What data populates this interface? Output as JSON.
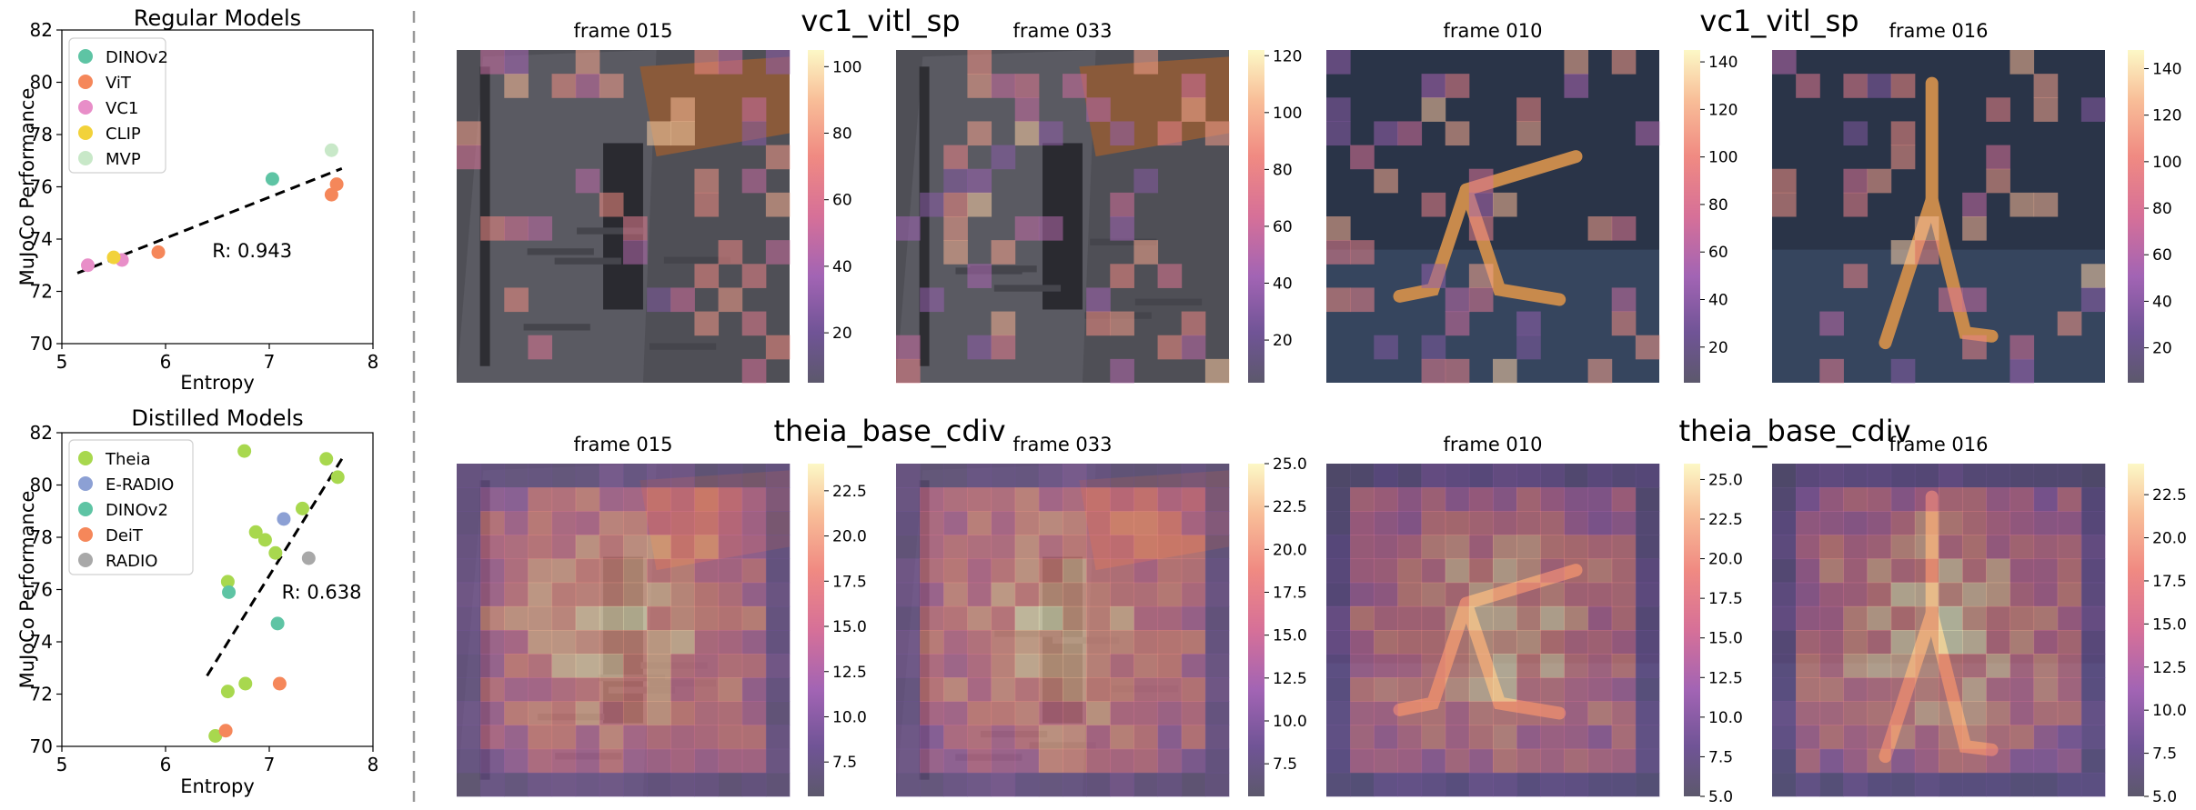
{
  "accent_colors": {
    "teal": "#5ec4a4",
    "orange": "#f5875a",
    "pink": "#e88ec8",
    "yellow": "#f2d23a",
    "mint": "#c8e8c8",
    "lime": "#a8d84e",
    "periwinkle": "#8ca0d4",
    "gray": "#a8a8a8"
  },
  "chart_data": [
    {
      "type": "scatter",
      "title": "Regular Models",
      "xlabel": "Entropy",
      "ylabel": "MuJoCo Performance",
      "xlim": [
        5,
        8
      ],
      "ylim": [
        70,
        82
      ],
      "xticks": [
        "5",
        "6",
        "7",
        "8"
      ],
      "yticks": [
        "70",
        "72",
        "74",
        "76",
        "78",
        "80",
        "82"
      ],
      "legend_position": "top-left",
      "annotation": "R: 0.943",
      "trend_line": {
        "x1": 5.15,
        "y1": 72.7,
        "x2": 7.7,
        "y2": 76.7
      },
      "series": [
        {
          "name": "DINOv2",
          "color": "#5ec4a4",
          "points": [
            [
              7.03,
              76.3
            ]
          ]
        },
        {
          "name": "ViT",
          "color": "#f5875a",
          "points": [
            [
              5.93,
              73.5
            ],
            [
              7.6,
              75.7
            ],
            [
              7.65,
              76.1
            ]
          ]
        },
        {
          "name": "VC1",
          "color": "#e88ec8",
          "points": [
            [
              5.25,
              73.0
            ],
            [
              5.58,
              73.2
            ]
          ]
        },
        {
          "name": "CLIP",
          "color": "#f2d23a",
          "points": [
            [
              5.5,
              73.3
            ]
          ]
        },
        {
          "name": "MVP",
          "color": "#c8e8c8",
          "points": [
            [
              7.6,
              77.4
            ]
          ]
        }
      ]
    },
    {
      "type": "scatter",
      "title": "Distilled Models",
      "xlabel": "Entropy",
      "ylabel": "MuJoCo Performance",
      "xlim": [
        5,
        8
      ],
      "ylim": [
        70,
        82
      ],
      "xticks": [
        "5",
        "6",
        "7",
        "8"
      ],
      "yticks": [
        "70",
        "72",
        "74",
        "76",
        "78",
        "80",
        "82"
      ],
      "legend_position": "top-left",
      "annotation": "R: 0.638",
      "trend_line": {
        "x1": 6.4,
        "y1": 72.7,
        "x2": 7.7,
        "y2": 81.0
      },
      "series": [
        {
          "name": "Theia",
          "color": "#a8d84e",
          "points": [
            [
              6.48,
              70.4
            ],
            [
              6.6,
              72.1
            ],
            [
              6.77,
              72.4
            ],
            [
              6.6,
              76.3
            ],
            [
              6.76,
              81.3
            ],
            [
              6.87,
              78.2
            ],
            [
              6.96,
              77.9
            ],
            [
              7.06,
              77.4
            ],
            [
              7.32,
              79.1
            ],
            [
              7.55,
              81.0
            ],
            [
              7.66,
              80.3
            ]
          ]
        },
        {
          "name": "E-RADIO",
          "color": "#8ca0d4",
          "points": [
            [
              7.14,
              78.7
            ]
          ]
        },
        {
          "name": "DINOv2",
          "color": "#5ec4a4",
          "points": [
            [
              6.61,
              75.9
            ],
            [
              7.08,
              74.7
            ]
          ]
        },
        {
          "name": "DeiT",
          "color": "#f5875a",
          "points": [
            [
              6.58,
              70.6
            ],
            [
              7.1,
              72.4
            ]
          ]
        },
        {
          "name": "RADIO",
          "color": "#a8a8a8",
          "points": [
            [
              7.38,
              77.2
            ]
          ]
        }
      ]
    },
    {
      "type": "heatmap",
      "group_title": "vc1_vitl_sp",
      "panels": [
        {
          "title": "frame 015",
          "scene": "door",
          "vmin": 5,
          "vmax": 105,
          "cbar_ticks": [
            "20",
            "40",
            "60",
            "80",
            "100"
          ]
        },
        {
          "title": "frame 033",
          "scene": "door",
          "vmin": 5,
          "vmax": 122,
          "cbar_ticks": [
            "20",
            "40",
            "60",
            "80",
            "100",
            "120"
          ]
        }
      ]
    },
    {
      "type": "heatmap",
      "group_title": "vc1_vitl_sp",
      "panels": [
        {
          "title": "frame 010",
          "scene": "walker",
          "vmin": 5,
          "vmax": 145,
          "cbar_ticks": [
            "20",
            "40",
            "60",
            "80",
            "100",
            "120",
            "140"
          ]
        },
        {
          "title": "frame 016",
          "scene": "walker",
          "vmin": 5,
          "vmax": 148,
          "cbar_ticks": [
            "20",
            "40",
            "60",
            "80",
            "100",
            "120",
            "140"
          ]
        }
      ]
    },
    {
      "type": "heatmap",
      "group_title": "theia_base_cdiv",
      "panels": [
        {
          "title": "frame 015",
          "scene": "door",
          "vmin": 5.6,
          "vmax": 24.0,
          "cbar_ticks": [
            "7.5",
            "10.0",
            "12.5",
            "15.0",
            "17.5",
            "20.0",
            "22.5"
          ]
        },
        {
          "title": "frame 033",
          "scene": "door",
          "vmin": 5.6,
          "vmax": 25.0,
          "cbar_ticks": [
            "7.5",
            "10.0",
            "12.5",
            "15.0",
            "17.5",
            "20.0",
            "22.5",
            "25.0"
          ]
        }
      ]
    },
    {
      "type": "heatmap",
      "group_title": "theia_base_cdiv",
      "panels": [
        {
          "title": "frame 010",
          "scene": "walker",
          "vmin": 5.0,
          "vmax": 26.0,
          "cbar_ticks": [
            "5.0",
            "7.5",
            "10.0",
            "12.5",
            "15.0",
            "17.5",
            "20.0",
            "22.5",
            "25.0"
          ]
        },
        {
          "title": "frame 016",
          "scene": "walker",
          "vmin": 5.0,
          "vmax": 24.3,
          "cbar_ticks": [
            "5.0",
            "7.5",
            "10.0",
            "12.5",
            "15.0",
            "17.5",
            "20.0",
            "22.5"
          ]
        }
      ]
    }
  ]
}
